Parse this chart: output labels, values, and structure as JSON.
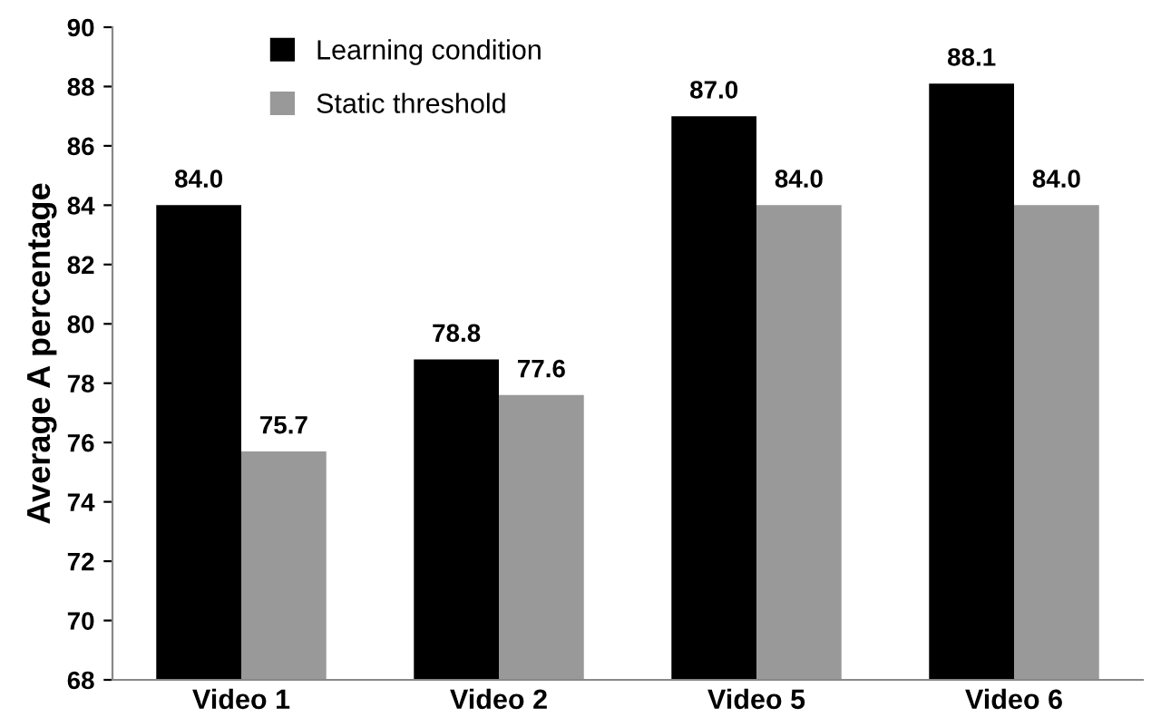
{
  "chart_data": {
    "type": "bar",
    "ylabel": "Average A percentage",
    "categories": [
      "Video 1",
      "Video 2",
      "Video 5",
      "Video 6"
    ],
    "series": [
      {
        "name": "Learning condition",
        "color": "#000000",
        "values": [
          84.0,
          78.8,
          87.0,
          88.1
        ],
        "value_labels": [
          "84.0",
          "78.8",
          "87.0",
          "88.1"
        ]
      },
      {
        "name": "Static threshold",
        "color": "#999999",
        "values": [
          75.7,
          77.6,
          84.0,
          84.0
        ],
        "value_labels": [
          "75.7",
          "77.6",
          "84.0",
          "84.0"
        ]
      }
    ],
    "ylim": [
      68,
      90
    ],
    "yticks": [
      68,
      70,
      72,
      74,
      76,
      78,
      80,
      82,
      84,
      86,
      88,
      90
    ],
    "grid": false,
    "legend": "top left"
  }
}
